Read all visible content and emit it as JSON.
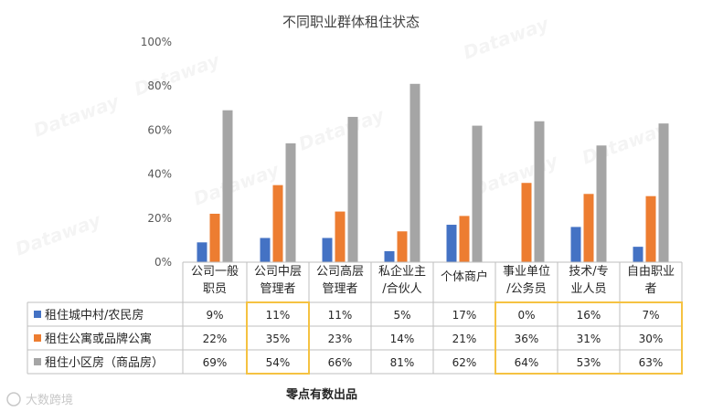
{
  "chart_data": {
    "type": "bar",
    "title": "不同职业群体租住状态",
    "xlabel": "",
    "ylabel": "",
    "ylim": [
      0,
      100
    ],
    "yticks": [
      "0%",
      "20%",
      "40%",
      "60%",
      "80%",
      "100%"
    ],
    "grid": false,
    "legend": "table-below",
    "categories": [
      [
        "公司一般",
        "职员"
      ],
      [
        "公司中层",
        "管理者"
      ],
      [
        "公司高层",
        "管理者"
      ],
      [
        "私企业主",
        "/合伙人"
      ],
      [
        "个体商户"
      ],
      [
        "事业单位",
        "/公务员"
      ],
      [
        "技术/专",
        "业人员"
      ],
      [
        "自由职业",
        "者"
      ]
    ],
    "series": [
      {
        "name": "租住城中村/农民房",
        "color": "#4472C4",
        "values": [
          9,
          11,
          11,
          5,
          17,
          0,
          16,
          7
        ],
        "labels": [
          "9%",
          "11%",
          "11%",
          "5%",
          "17%",
          "0%",
          "16%",
          "7%"
        ]
      },
      {
        "name": "租住公寓或品牌公寓",
        "color": "#ED7D31",
        "values": [
          22,
          35,
          23,
          14,
          21,
          36,
          31,
          30
        ],
        "labels": [
          "22%",
          "35%",
          "23%",
          "14%",
          "21%",
          "36%",
          "31%",
          "30%"
        ]
      },
      {
        "name": "租住小区房（商品房）",
        "color": "#A5A5A5",
        "values": [
          69,
          54,
          66,
          81,
          62,
          64,
          53,
          63
        ],
        "labels": [
          "69%",
          "54%",
          "66%",
          "81%",
          "62%",
          "64%",
          "53%",
          "63%"
        ]
      }
    ],
    "highlight_color": "#F5C242",
    "source": "零点有数出品",
    "watermark": "Dataway",
    "corner_logo": "大数跨境"
  }
}
